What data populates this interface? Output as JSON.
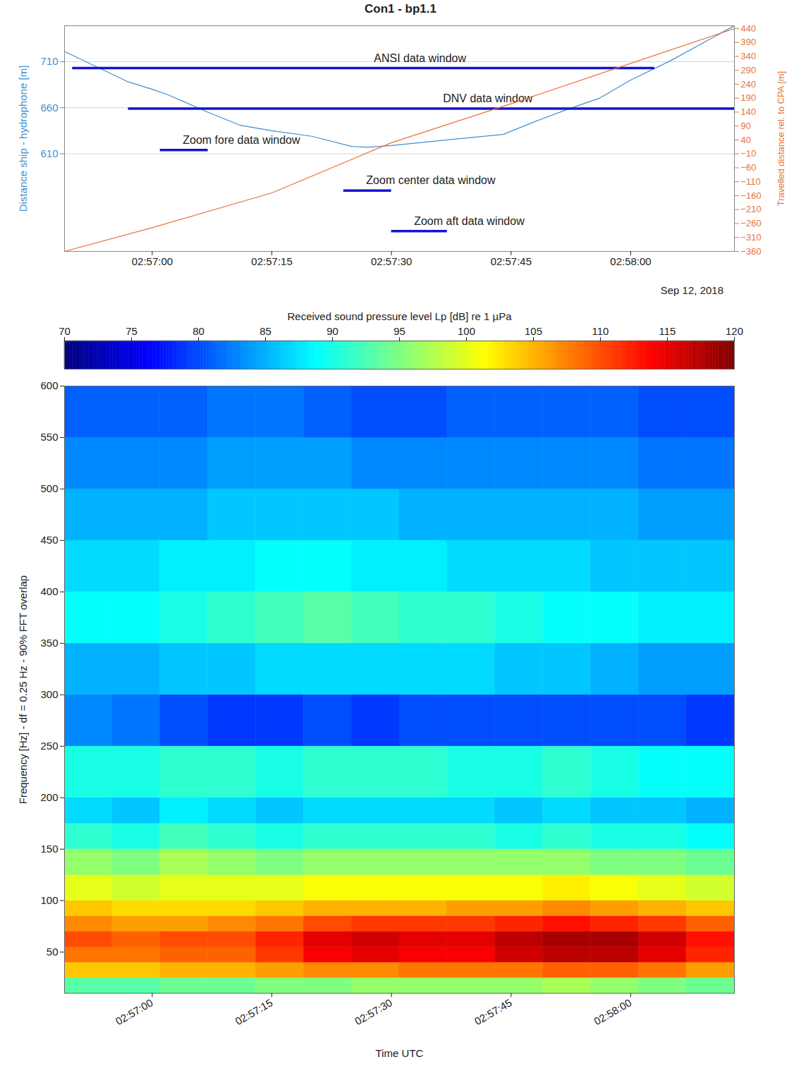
{
  "chart_data": [
    {
      "type": "line",
      "title": "Con1 - bp1.1",
      "date_label": "Sep 12, 2018",
      "xlim": [
        "02:56:49",
        "02:58:13"
      ],
      "xticks": [
        "02:57:00",
        "02:57:15",
        "02:57:30",
        "02:57:45",
        "02:58:00"
      ],
      "y_label": "Distance ship - hydrophone [m]",
      "ylim": [
        504,
        749
      ],
      "yticks": [
        610,
        660,
        710
      ],
      "y2_label": "Travelled distance rel. to CPA [m]",
      "y2lim": [
        -360,
        450
      ],
      "y2ticks": [
        440,
        390,
        340,
        290,
        240,
        190,
        140,
        90,
        40,
        -10,
        -60,
        -110,
        -160,
        -210,
        -260,
        -310,
        -360
      ],
      "grid": true,
      "series": [
        {
          "color": "#3f8fd2",
          "x": [
            "02:56:49",
            "02:56:57",
            "02:57:00",
            "02:57:02",
            "02:57:07",
            "02:57:11",
            "02:57:15",
            "02:57:20",
            "02:57:25",
            "02:57:27",
            "02:57:30",
            "02:57:37",
            "02:57:44",
            "02:57:48",
            "02:57:52",
            "02:57:56",
            "02:58:00",
            "02:58:05",
            "02:58:13"
          ],
          "values": [
            721,
            688,
            680,
            674,
            655,
            641,
            635,
            629,
            618,
            617,
            619,
            625,
            631,
            645,
            658,
            670,
            690,
            711,
            749
          ]
        },
        {
          "color": "#e8743b",
          "axis": "y2",
          "x": [
            "02:56:49",
            "02:57:00",
            "02:57:15",
            "02:57:30",
            "02:57:45",
            "02:58:00",
            "02:58:13"
          ],
          "values": [
            -360,
            -275,
            -150,
            30,
            170,
            315,
            440
          ]
        }
      ],
      "windows": [
        {
          "label": "ANSI data window",
          "start": "02:56:50",
          "end": "02:58:03",
          "level": 703,
          "color": "#1414d2"
        },
        {
          "label": "DNV data window",
          "start": "02:56:57",
          "end": "02:58:13",
          "level": 659,
          "color": "#1414d2"
        },
        {
          "label": "Zoom fore data window",
          "start": "02:57:01",
          "end": "02:57:07",
          "level": 614,
          "color": "#1414d2"
        },
        {
          "label": "Zoom center data window",
          "start": "02:57:24",
          "end": "02:57:30",
          "level": 570,
          "color": "#1414d2"
        },
        {
          "label": "Zoom aft data window",
          "start": "02:57:30",
          "end": "02:57:37",
          "level": 526,
          "color": "#1414d2"
        }
      ]
    },
    {
      "type": "heatmap",
      "x_label": "Time UTC",
      "y_label": "Frequency [Hz] - df = 0.25 Hz - 90% FFT overlap",
      "xlim": [
        "02:56:49",
        "02:58:13"
      ],
      "xticks": [
        "02:57:00",
        "02:57:15",
        "02:57:30",
        "02:57:45",
        "02:58:00"
      ],
      "ylim": [
        10,
        600
      ],
      "yticks": [
        50,
        100,
        150,
        200,
        250,
        300,
        350,
        400,
        450,
        500,
        550,
        600
      ],
      "x_edges": [
        "02:56:49",
        "02:56:55",
        "02:57:01",
        "02:57:07",
        "02:57:13",
        "02:57:19",
        "02:57:25",
        "02:57:31",
        "02:57:37",
        "02:57:43",
        "02:57:49",
        "02:57:55",
        "02:58:01",
        "02:58:07",
        "02:58:13"
      ],
      "y_edges": [
        10,
        25,
        40,
        55,
        70,
        85,
        100,
        125,
        150,
        175,
        200,
        250,
        300,
        350,
        400,
        450,
        500,
        550,
        600
      ],
      "cells": [
        [
          93,
          93,
          94,
          94,
          95,
          95,
          96,
          96,
          96,
          96,
          97,
          96,
          95,
          94
        ],
        [
          104,
          104,
          105,
          105,
          106,
          107,
          107,
          108,
          108,
          108,
          109,
          109,
          108,
          106
        ],
        [
          108,
          108,
          109,
          109,
          111,
          114,
          115,
          114,
          114,
          116,
          117,
          117,
          115,
          112
        ],
        [
          110,
          109,
          110,
          110,
          112,
          115,
          116,
          115,
          115,
          117,
          118,
          118,
          116,
          113
        ],
        [
          107,
          106,
          106,
          107,
          108,
          110,
          111,
          111,
          111,
          112,
          113,
          112,
          111,
          109
        ],
        [
          104,
          103,
          103,
          103,
          104,
          105,
          105,
          105,
          106,
          106,
          107,
          106,
          105,
          104
        ],
        [
          100,
          99,
          100,
          100,
          100,
          101,
          101,
          101,
          101,
          101,
          102,
          101,
          100,
          99
        ],
        [
          96,
          95,
          97,
          96,
          95,
          96,
          96,
          96,
          96,
          96,
          96,
          95,
          95,
          94
        ],
        [
          91,
          90,
          92,
          91,
          90,
          91,
          91,
          91,
          91,
          90,
          91,
          90,
          90,
          89
        ],
        [
          87,
          86,
          88,
          87,
          86,
          87,
          87,
          87,
          87,
          86,
          87,
          86,
          86,
          85
        ],
        [
          90,
          90,
          91,
          91,
          90,
          91,
          91,
          91,
          90,
          90,
          91,
          90,
          89,
          89
        ],
        [
          83,
          82,
          80,
          79,
          79,
          80,
          79,
          80,
          80,
          80,
          80,
          80,
          80,
          79
        ],
        [
          85,
          85,
          86,
          86,
          87,
          87,
          87,
          87,
          87,
          86,
          86,
          85,
          84,
          84
        ],
        [
          89,
          89,
          90,
          91,
          92,
          93,
          92,
          91,
          91,
          90,
          89,
          89,
          88,
          88
        ],
        [
          87,
          87,
          88,
          88,
          89,
          89,
          88,
          88,
          87,
          87,
          87,
          86,
          86,
          86
        ],
        [
          85,
          85,
          85,
          86,
          86,
          86,
          86,
          85,
          85,
          85,
          85,
          85,
          84,
          84
        ],
        [
          83,
          83,
          83,
          84,
          84,
          84,
          83,
          83,
          83,
          83,
          83,
          83,
          82,
          82
        ],
        [
          81,
          81,
          81,
          82,
          82,
          81,
          80,
          80,
          81,
          81,
          81,
          81,
          80,
          80
        ]
      ],
      "colorbar": {
        "label": "Received sound pressure level Lp [dB] re 1 µPa",
        "range": [
          70,
          120
        ],
        "ticks": [
          70,
          75,
          80,
          85,
          90,
          95,
          100,
          105,
          110,
          115,
          120
        ]
      }
    }
  ]
}
